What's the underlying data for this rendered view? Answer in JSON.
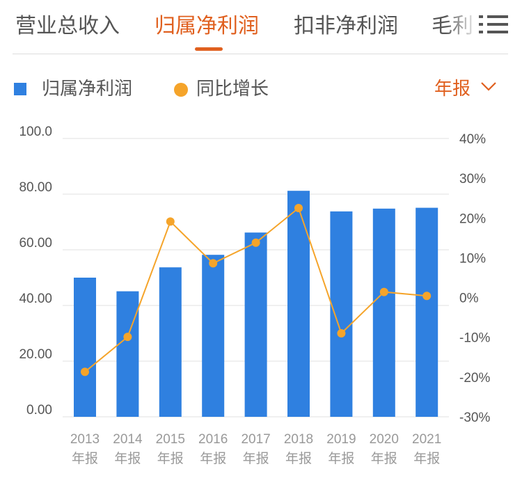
{
  "tabs": [
    {
      "label": "营业总收入",
      "active": false
    },
    {
      "label": "归属净利润",
      "active": true
    },
    {
      "label": "扣非净利润",
      "active": false
    },
    {
      "label": "毛利",
      "active": false
    }
  ],
  "menu_icon": "hamburger-menu-icon",
  "legend": {
    "bar_label": "归属净利润",
    "line_label": "同比增长"
  },
  "period_select": {
    "value": "年报",
    "icon": "chevron-down-icon"
  },
  "colors": {
    "bar": "#2f80e0",
    "line": "#f5a42a",
    "accent": "#e0601f"
  },
  "chart_data": {
    "type": "bar+line",
    "categories": [
      "2013",
      "2014",
      "2015",
      "2016",
      "2017",
      "2018",
      "2019",
      "2020",
      "2021"
    ],
    "category_sublabel": "年报",
    "series": [
      {
        "name": "归属净利润",
        "type": "bar",
        "axis": "left",
        "values": [
          50.0,
          45.1,
          53.7,
          58.2,
          66.2,
          81.2,
          73.8,
          74.8,
          75.1
        ]
      },
      {
        "name": "同比增长",
        "type": "line",
        "axis": "right",
        "unit": "%",
        "values": [
          -18.7,
          -9.9,
          19.1,
          8.6,
          13.8,
          22.5,
          -9.0,
          1.4,
          0.4
        ]
      }
    ],
    "left_axis": {
      "ylim": [
        0,
        100
      ],
      "tick_labels": [
        "100.0",
        "80.00",
        "60.00",
        "40.00",
        "20.00",
        "0.00"
      ]
    },
    "right_axis": {
      "ylim": [
        -30,
        40
      ],
      "tick_labels": [
        "40%",
        "30%",
        "20%",
        "10%",
        "0%",
        "-10%",
        "-20%",
        "-30%"
      ]
    },
    "grid": true,
    "legend_position": "top-left"
  }
}
